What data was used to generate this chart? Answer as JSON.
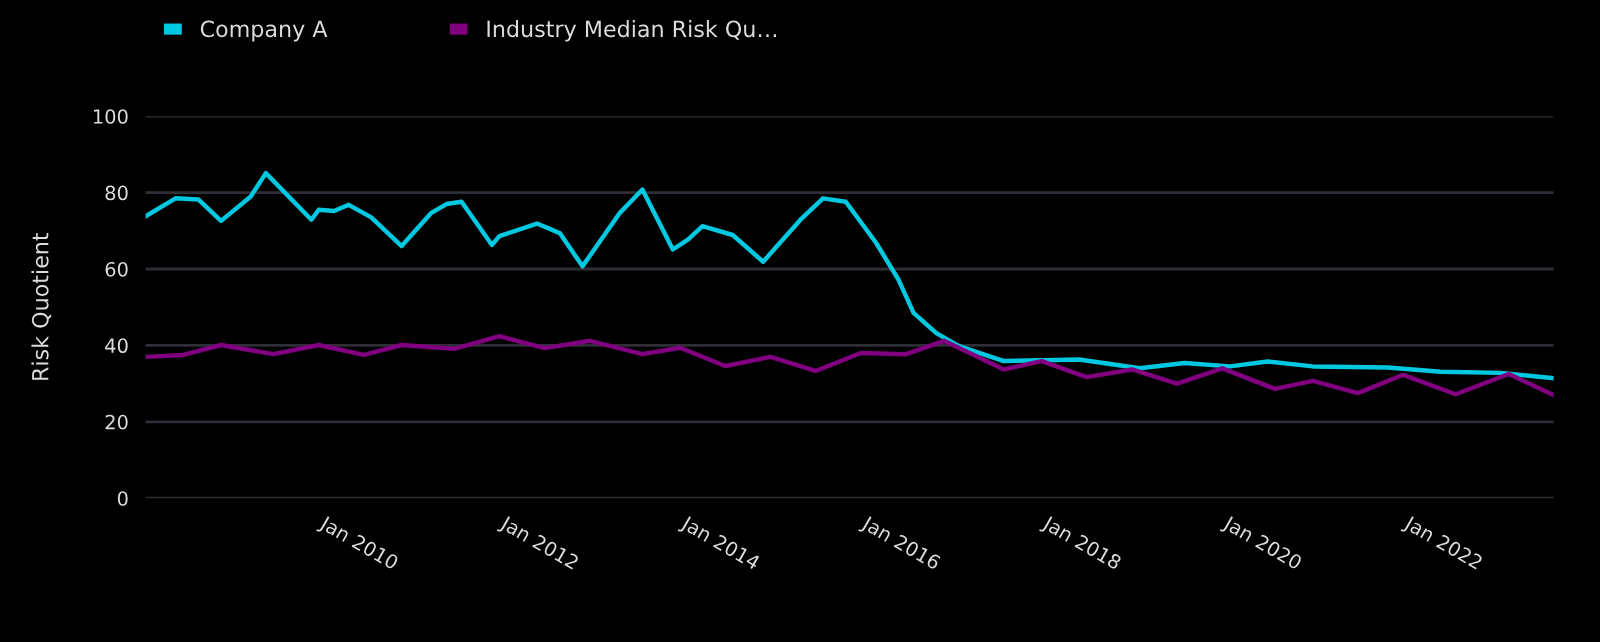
{
  "chart_data": {
    "type": "line",
    "ylabel": "Risk Quotient",
    "ylim": [
      0,
      100
    ],
    "yticks": [
      0,
      20,
      40,
      60,
      80,
      100
    ],
    "xlim": [
      "2008-01",
      "2023-08"
    ],
    "xticks": [
      {
        "value": "2010-01",
        "label": "Jan 2010"
      },
      {
        "value": "2012-01",
        "label": "Jan 2012"
      },
      {
        "value": "2014-01",
        "label": "Jan 2014"
      },
      {
        "value": "2016-01",
        "label": "Jan 2016"
      },
      {
        "value": "2018-01",
        "label": "Jan 2018"
      },
      {
        "value": "2020-01",
        "label": "Jan 2020"
      },
      {
        "value": "2022-01",
        "label": "Jan 2022"
      }
    ],
    "grid": "y",
    "legend": "top left",
    "marker": "none",
    "line_style": "solid",
    "series": [
      {
        "name": "Company A",
        "color": "#00c8e0",
        "x": [
          "2008-01",
          "2008-05",
          "2008-08",
          "2008-11",
          "2009-03",
          "2009-05",
          "2009-11",
          "2009-12",
          "2010-02",
          "2010-04",
          "2010-07",
          "2010-11",
          "2011-03",
          "2011-05",
          "2011-07",
          "2011-11",
          "2011-12",
          "2012-05",
          "2012-08",
          "2012-11",
          "2013-04",
          "2013-07",
          "2013-11",
          "2014-01",
          "2014-03",
          "2014-07",
          "2014-11",
          "2015-04",
          "2015-07",
          "2015-10",
          "2016-02",
          "2016-05",
          "2016-07",
          "2016-10",
          "2017-01",
          "2017-07",
          "2018-05",
          "2019-01",
          "2019-07",
          "2020-01",
          "2020-06",
          "2020-12",
          "2021-10",
          "2022-05",
          "2023-01",
          "2023-08"
        ],
        "values": [
          73.8,
          78.5,
          78.2,
          72.6,
          79,
          85.1,
          72.9,
          75.5,
          75.2,
          76.8,
          73.5,
          66,
          74.7,
          77,
          77.6,
          66.3,
          68.6,
          71.9,
          69.4,
          60.7,
          74.7,
          80.8,
          65.1,
          67.7,
          71.2,
          68.9,
          61.9,
          72.9,
          78.5,
          77.6,
          66.8,
          57.2,
          48.5,
          43.2,
          39.8,
          35.9,
          36.3,
          34,
          35.4,
          34.5,
          35.8,
          34.5,
          34.2,
          33.1,
          32.8,
          31.4
        ]
      },
      {
        "name": "Industry Median Risk Qu…",
        "color": "#800080",
        "x": [
          "2008-01",
          "2008-06",
          "2008-11",
          "2009-06",
          "2009-12",
          "2010-06",
          "2010-11",
          "2011-06",
          "2011-12",
          "2012-06",
          "2012-12",
          "2013-07",
          "2013-12",
          "2014-06",
          "2014-12",
          "2015-06",
          "2015-12",
          "2016-06",
          "2016-11",
          "2017-07",
          "2017-12",
          "2018-06",
          "2018-12",
          "2019-06",
          "2019-12",
          "2020-07",
          "2020-12",
          "2021-06",
          "2021-12",
          "2022-07",
          "2023-02",
          "2023-08"
        ],
        "values": [
          37,
          37.5,
          40.1,
          37.7,
          40.1,
          37.5,
          40.1,
          39.1,
          42.4,
          39.3,
          41.2,
          37.7,
          39.4,
          34.6,
          37,
          33.3,
          38,
          37.7,
          41.2,
          33.7,
          35.9,
          31.7,
          33.7,
          30,
          34,
          28.6,
          30.7,
          27.5,
          32.3,
          27.2,
          32.5,
          27
        ]
      }
    ]
  }
}
